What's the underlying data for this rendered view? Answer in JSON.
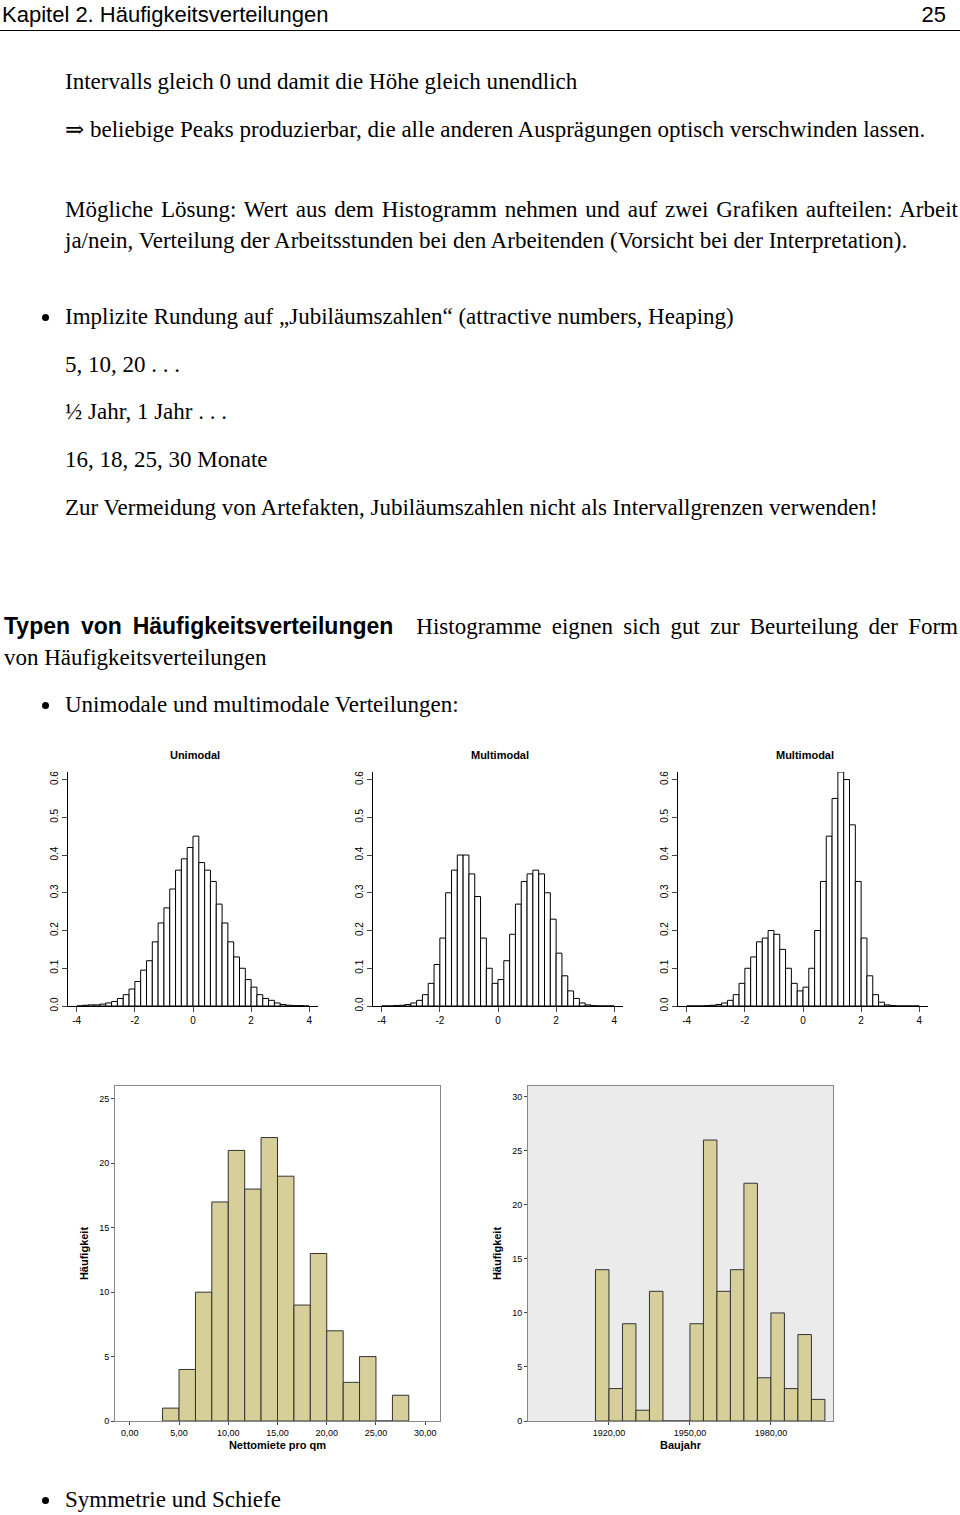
{
  "header": {
    "chapter": "Kapitel 2. Häufigkeitsverteilungen",
    "page": "25"
  },
  "body": {
    "p1": "Intervalls gleich 0 und damit die Höhe gleich unendlich",
    "p2": "⇒ beliebige Peaks produzierbar, die alle anderen Ausprägungen optisch verschwinden lassen.",
    "p3": "Mögliche Lösung: Wert aus dem Histogramm nehmen und auf zwei Grafiken aufteilen: Arbeit ja/nein, Verteilung der Arbeitsstunden bei den Arbeitenden (Vorsicht bei der Interpretation).",
    "bullet1": "Implizite Rundung auf „Jubiläumszahlen“ (attractive numbers, Heaping)",
    "examples": [
      "5, 10, 20 . . .",
      "½ Jahr, 1 Jahr . . .",
      "16, 18, 25, 30 Monate"
    ],
    "note": "Zur Vermeidung von Artefakten, Jubiläumszahlen nicht als Intervallgrenzen verwenden!",
    "section_title": "Typen von Häufigkeitsverteilungen",
    "section_text": "Histogramme eignen sich gut zur Beurteilung der Form von Häufigkeitsverteilungen",
    "bullet2": "Unimodale und multimodale Verteilungen:",
    "bullet3": "Symmetrie und Schiefe"
  },
  "chart_data": [
    {
      "type": "histogram",
      "title": "Unimodal",
      "color": "#ffffff",
      "bins": [
        -4.0,
        -3.8,
        -3.6,
        -3.4,
        -3.2,
        -3.0,
        -2.8,
        -2.6,
        -2.4,
        -2.2,
        -2.0,
        -1.8,
        -1.6,
        -1.4,
        -1.2,
        -1.0,
        -0.8,
        -0.6,
        -0.4,
        -0.2,
        0.0,
        0.2,
        0.4,
        0.6,
        0.8,
        1.0,
        1.2,
        1.4,
        1.6,
        1.8,
        2.0,
        2.2,
        2.4,
        2.6,
        2.8,
        3.0,
        3.2,
        3.4,
        3.6,
        3.8,
        4.0
      ],
      "values": [
        0,
        0.002,
        0.003,
        0.003,
        0.005,
        0.008,
        0.012,
        0.02,
        0.03,
        0.045,
        0.065,
        0.095,
        0.12,
        0.17,
        0.22,
        0.26,
        0.31,
        0.36,
        0.39,
        0.42,
        0.45,
        0.38,
        0.36,
        0.33,
        0.27,
        0.22,
        0.17,
        0.13,
        0.1,
        0.07,
        0.05,
        0.03,
        0.02,
        0.015,
        0.008,
        0.004,
        0.002,
        0.001,
        0.001,
        0
      ],
      "xlim": [
        -4.3,
        4.3
      ],
      "ylim": [
        0,
        0.62
      ],
      "xticks": [
        -4,
        -2,
        0,
        2,
        4
      ],
      "yticks": [
        {
          "value": 0,
          "label": "0.0"
        },
        0.1,
        0.2,
        0.3,
        0.4,
        0.5,
        0.6
      ],
      "grid": false
    },
    {
      "type": "histogram",
      "title": "Multimodal",
      "color": "#ffffff",
      "bins": [
        -4.0,
        -3.8,
        -3.6,
        -3.4,
        -3.2,
        -3.0,
        -2.8,
        -2.6,
        -2.4,
        -2.2,
        -2.0,
        -1.8,
        -1.6,
        -1.4,
        -1.2,
        -1.0,
        -0.8,
        -0.6,
        -0.4,
        -0.2,
        0.0,
        0.2,
        0.4,
        0.6,
        0.8,
        1.0,
        1.2,
        1.4,
        1.6,
        1.8,
        2.0,
        2.2,
        2.4,
        2.6,
        2.8,
        3.0,
        3.2,
        3.4,
        3.6,
        3.8,
        4.0
      ],
      "values": [
        0,
        0,
        0.001,
        0.002,
        0.004,
        0.008,
        0.015,
        0.03,
        0.06,
        0.11,
        0.18,
        0.3,
        0.36,
        0.4,
        0.4,
        0.35,
        0.29,
        0.18,
        0.1,
        0.06,
        0.07,
        0.12,
        0.19,
        0.27,
        0.33,
        0.35,
        0.36,
        0.35,
        0.3,
        0.23,
        0.14,
        0.08,
        0.04,
        0.02,
        0.008,
        0.003,
        0.001,
        0,
        0,
        0
      ],
      "xlim": [
        -4.3,
        4.3
      ],
      "ylim": [
        0,
        0.62
      ],
      "xticks": [
        -4,
        -2,
        0,
        2,
        4
      ],
      "yticks": [
        {
          "value": 0,
          "label": "0.0"
        },
        0.1,
        0.2,
        0.3,
        0.4,
        0.5,
        0.6
      ],
      "grid": false
    },
    {
      "type": "histogram",
      "title": "Multimodal",
      "color": "#ffffff",
      "bins": [
        -4.0,
        -3.8,
        -3.6,
        -3.4,
        -3.2,
        -3.0,
        -2.8,
        -2.6,
        -2.4,
        -2.2,
        -2.0,
        -1.8,
        -1.6,
        -1.4,
        -1.2,
        -1.0,
        -0.8,
        -0.6,
        -0.4,
        -0.2,
        0.0,
        0.2,
        0.4,
        0.6,
        0.8,
        1.0,
        1.2,
        1.4,
        1.6,
        1.8,
        2.0,
        2.2,
        2.4,
        2.6,
        2.8,
        3.0,
        3.2,
        3.4,
        3.6,
        3.8,
        4.0
      ],
      "values": [
        0,
        0,
        0,
        0.001,
        0.002,
        0.004,
        0.008,
        0.015,
        0.03,
        0.06,
        0.1,
        0.13,
        0.17,
        0.18,
        0.2,
        0.19,
        0.15,
        0.1,
        0.06,
        0.04,
        0.05,
        0.1,
        0.2,
        0.33,
        0.45,
        0.55,
        0.62,
        0.6,
        0.48,
        0.33,
        0.18,
        0.08,
        0.03,
        0.01,
        0.003,
        0.001,
        0,
        0,
        0,
        0
      ],
      "xlim": [
        -4.3,
        4.3
      ],
      "ylim": [
        0,
        0.62
      ],
      "xticks": [
        -4,
        -2,
        0,
        2,
        4
      ],
      "yticks": [
        {
          "value": 0,
          "label": "0.0"
        },
        0.1,
        0.2,
        0.3,
        0.4,
        0.5,
        0.6
      ],
      "grid": false
    },
    {
      "type": "histogram",
      "x_label": "Nettomiete pro qm",
      "y_label": "Häufigkeit",
      "color": "#d6cf9a",
      "bins": [
        3.33,
        5.0,
        6.67,
        8.33,
        10.0,
        11.67,
        13.33,
        15.0,
        16.67,
        18.33,
        20.0,
        21.67,
        23.33,
        25.0,
        26.67,
        28.33
      ],
      "values": [
        1,
        4,
        10,
        17,
        21,
        18,
        22,
        19,
        9,
        13,
        7,
        3,
        5,
        0,
        2
      ],
      "xlim": [
        -1.5,
        31.5
      ],
      "ylim": [
        0,
        26
      ],
      "xticks": [
        {
          "value": 0,
          "label": "0,00"
        },
        {
          "value": 5,
          "label": "5,00"
        },
        {
          "value": 10,
          "label": "10,00"
        },
        {
          "value": 15,
          "label": "15,00"
        },
        {
          "value": 20,
          "label": "20,00"
        },
        {
          "value": 25,
          "label": "25,00"
        },
        {
          "value": 30,
          "label": "30,00"
        }
      ],
      "yticks": [
        0,
        5,
        10,
        15,
        20,
        25
      ],
      "grid": false
    },
    {
      "type": "histogram",
      "x_label": "Baujahr",
      "y_label": "Häufigkeit",
      "color": "#d6cf9a",
      "bins": [
        1915,
        1920,
        1925,
        1930,
        1935,
        1940,
        1945,
        1950,
        1955,
        1960,
        1965,
        1970,
        1975,
        1980,
        1985,
        1990,
        1995,
        2000
      ],
      "values": [
        14,
        3,
        9,
        1,
        12,
        0,
        0,
        9,
        26,
        12,
        14,
        22,
        4,
        10,
        3,
        8,
        2
      ],
      "xlim": [
        1890,
        2003
      ],
      "ylim": [
        0,
        31
      ],
      "xticks": [
        {
          "value": 1920,
          "label": "1920,00"
        },
        {
          "value": 1950,
          "label": "1950,00"
        },
        {
          "value": 1980,
          "label": "1980,00"
        }
      ],
      "yticks": [
        0,
        5,
        10,
        15,
        20,
        25,
        30
      ],
      "grid": false
    }
  ]
}
